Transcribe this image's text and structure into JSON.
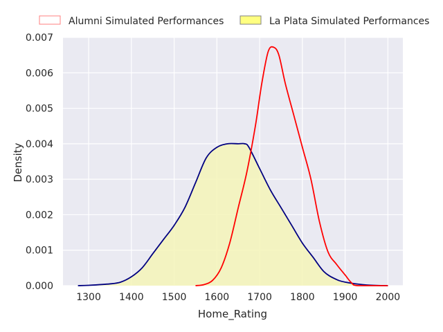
{
  "chart_data": {
    "type": "area",
    "xlabel": "Home_Rating",
    "ylabel": "Density",
    "xlim": [
      1240,
      2035
    ],
    "ylim": [
      0,
      0.007
    ],
    "x_ticks": [
      1300,
      1400,
      1500,
      1600,
      1700,
      1800,
      1900,
      2000
    ],
    "y_ticks": [
      0.0,
      0.001,
      0.002,
      0.003,
      0.004,
      0.005,
      0.006,
      0.007
    ],
    "x_tick_labels": [
      "1300",
      "1400",
      "1500",
      "1600",
      "1700",
      "1800",
      "1900",
      "2000"
    ],
    "y_tick_labels": [
      "0.000",
      "0.001",
      "0.002",
      "0.003",
      "0.004",
      "0.005",
      "0.006",
      "0.007"
    ],
    "grid": true,
    "legend_position": "top-center, above plot",
    "series": [
      {
        "name": "Alumni Simulated Performances",
        "line_color": "#ff0000",
        "fill_color": "none",
        "legend_edge_color": "#ff7f7f",
        "points": [
          [
            1550,
            0.0
          ],
          [
            1570,
            3e-05
          ],
          [
            1590,
            0.00015
          ],
          [
            1610,
            0.0005
          ],
          [
            1630,
            0.0012
          ],
          [
            1650,
            0.0022
          ],
          [
            1670,
            0.0032
          ],
          [
            1690,
            0.0045
          ],
          [
            1705,
            0.0057
          ],
          [
            1720,
            0.0066
          ],
          [
            1733,
            0.00672
          ],
          [
            1745,
            0.0065
          ],
          [
            1760,
            0.0057
          ],
          [
            1780,
            0.0048
          ],
          [
            1800,
            0.0039
          ],
          [
            1820,
            0.003
          ],
          [
            1840,
            0.0018
          ],
          [
            1860,
            0.00095
          ],
          [
            1880,
            0.0006
          ],
          [
            1900,
            0.0003
          ],
          [
            1915,
            8e-05
          ],
          [
            1930,
            0.0
          ],
          [
            2000,
            0.0
          ]
        ]
      },
      {
        "name": "La Plata Simulated Performances",
        "line_color": "#000080",
        "fill_color": "#f5f5b8",
        "legend_face_color": "#ffff80",
        "legend_edge_color": "#808080",
        "points": [
          [
            1275,
            0.0
          ],
          [
            1300,
            1e-05
          ],
          [
            1350,
            5e-05
          ],
          [
            1375,
            0.0001
          ],
          [
            1400,
            0.00025
          ],
          [
            1425,
            0.0005
          ],
          [
            1450,
            0.0009
          ],
          [
            1475,
            0.0013
          ],
          [
            1500,
            0.0017
          ],
          [
            1525,
            0.0022
          ],
          [
            1550,
            0.0029
          ],
          [
            1575,
            0.0036
          ],
          [
            1600,
            0.0039
          ],
          [
            1625,
            0.004
          ],
          [
            1650,
            0.004
          ],
          [
            1665,
            0.004
          ],
          [
            1675,
            0.0039
          ],
          [
            1700,
            0.0033
          ],
          [
            1725,
            0.0027
          ],
          [
            1750,
            0.0022
          ],
          [
            1775,
            0.0017
          ],
          [
            1800,
            0.0012
          ],
          [
            1825,
            0.0008
          ],
          [
            1850,
            0.0004
          ],
          [
            1875,
            0.0002
          ],
          [
            1900,
            0.0001
          ],
          [
            1950,
            2e-05
          ],
          [
            2000,
            0.0
          ]
        ]
      }
    ]
  }
}
